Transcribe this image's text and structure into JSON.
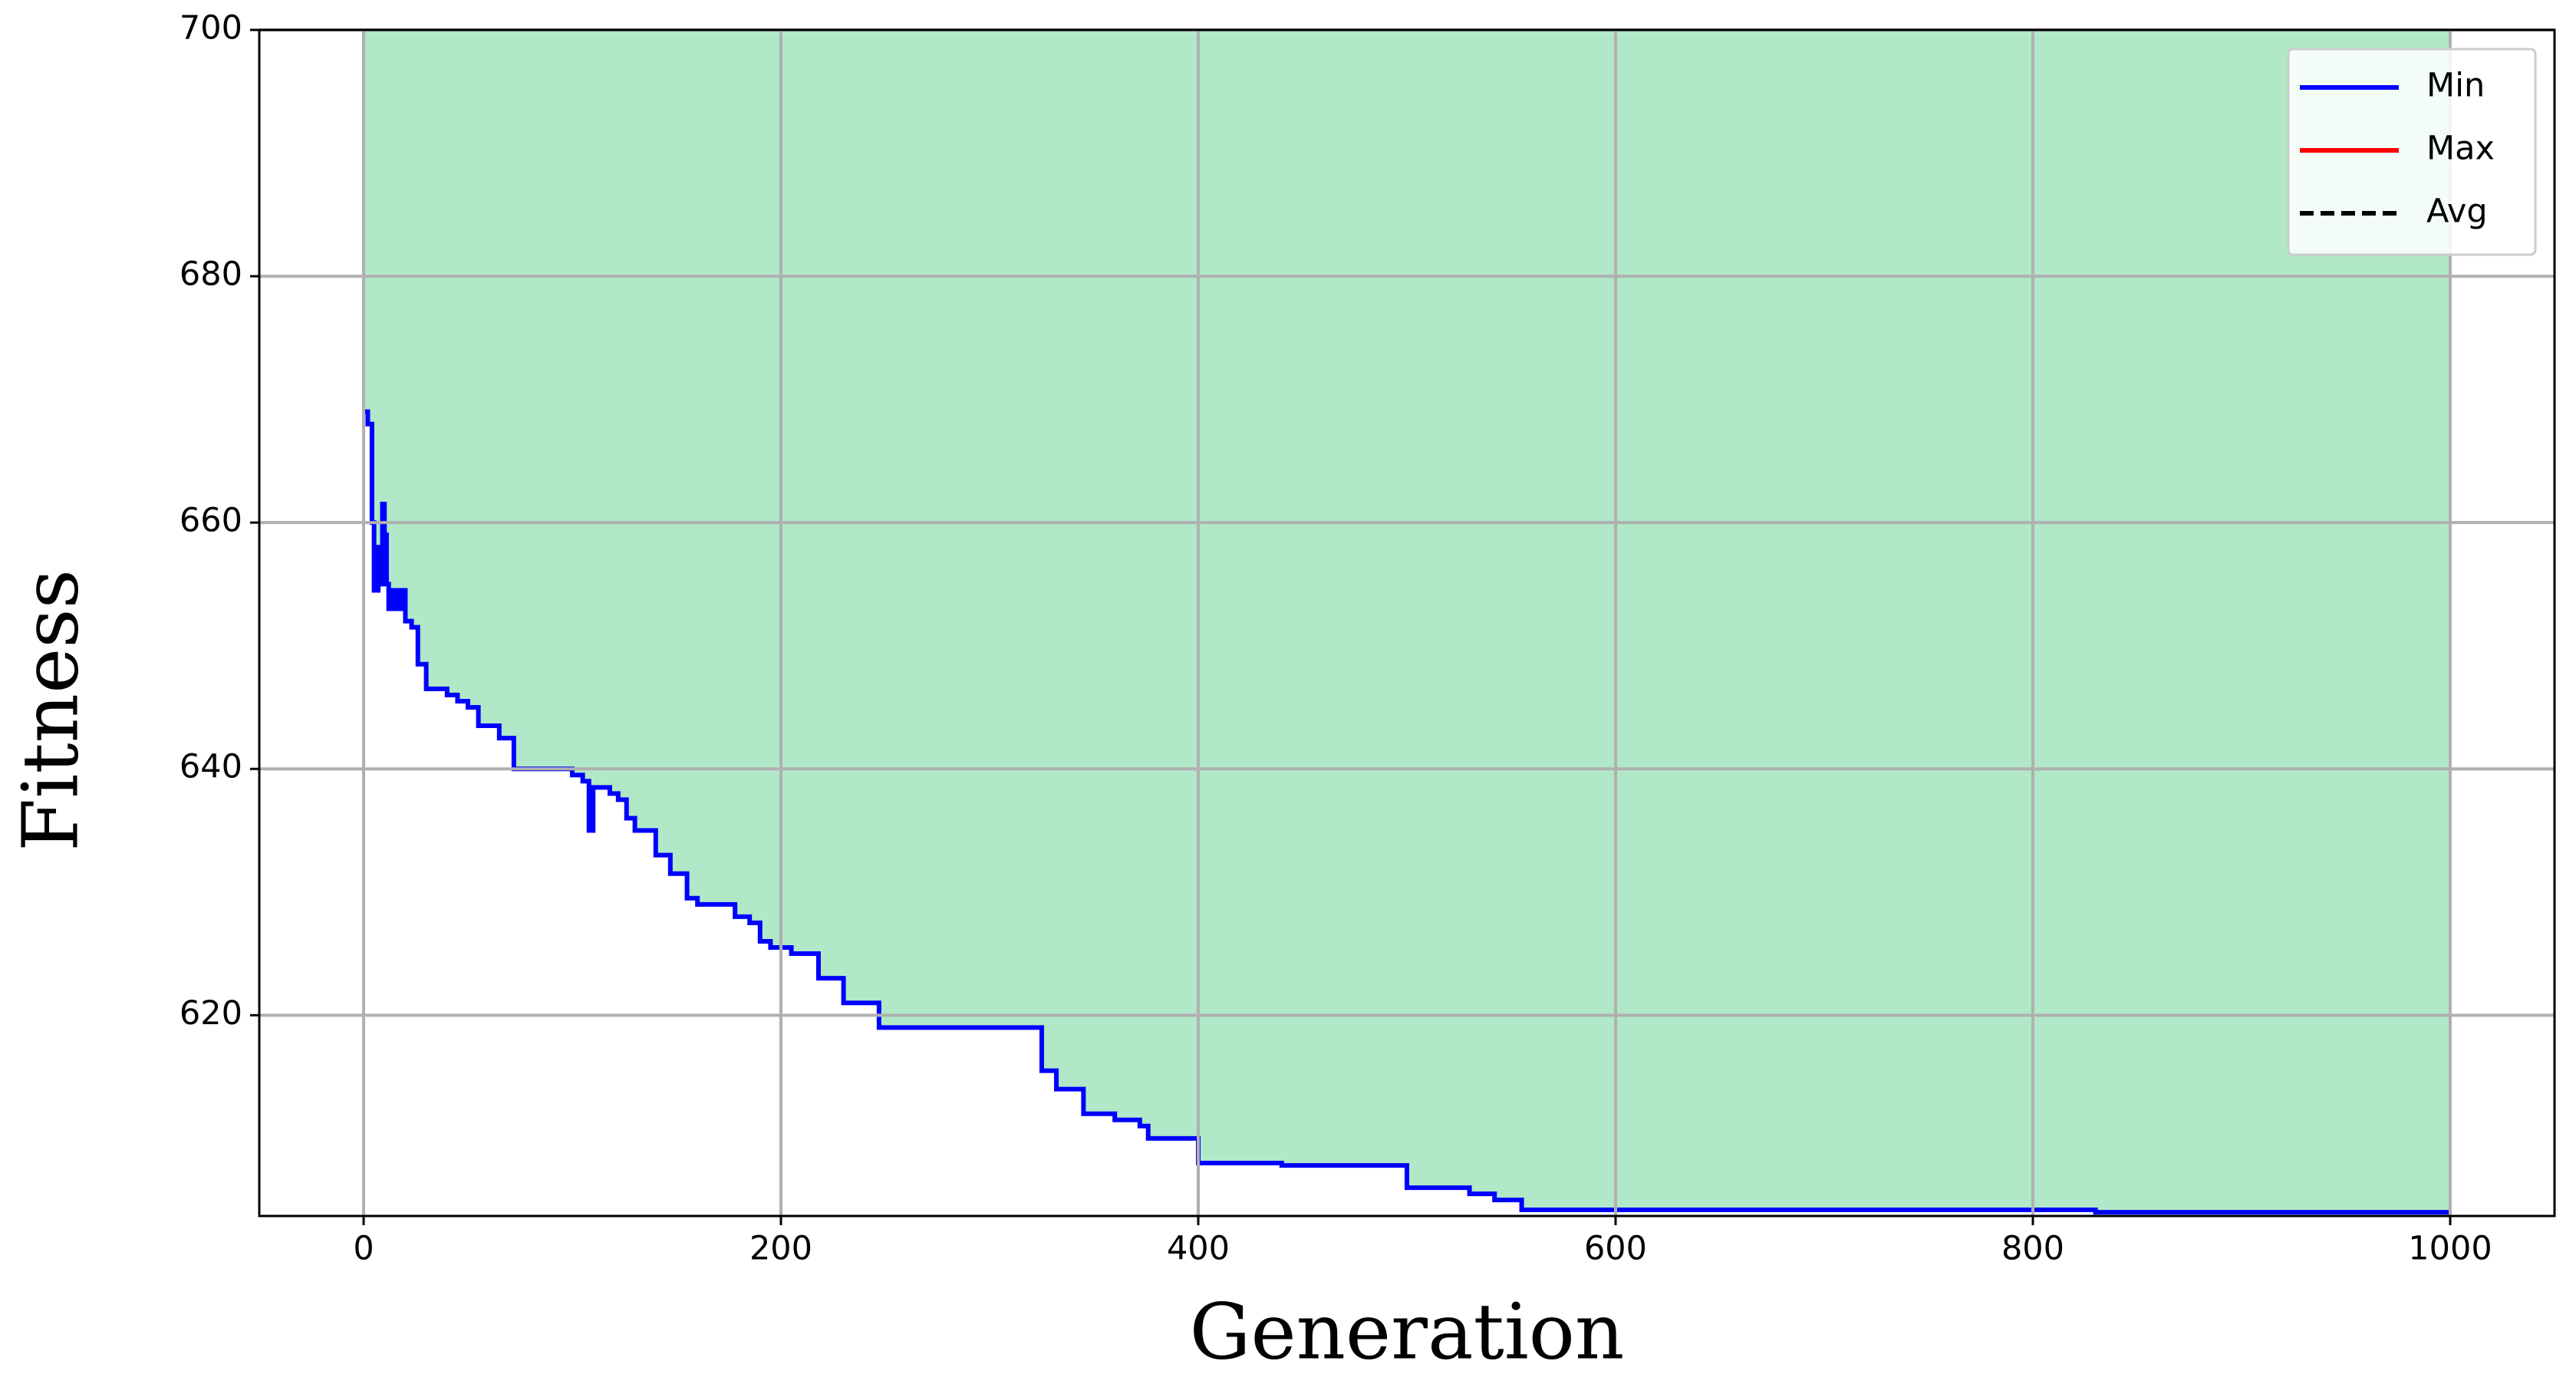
{
  "chart_data": {
    "type": "line",
    "step": true,
    "xlabel": "Generation",
    "ylabel": "Fitness",
    "x": [
      0,
      2,
      4,
      5,
      7,
      8,
      9,
      10,
      11,
      12,
      14,
      16,
      18,
      20,
      23,
      26,
      30,
      40,
      45,
      50,
      55,
      65,
      72,
      100,
      105,
      108,
      110,
      118,
      122,
      126,
      130,
      140,
      147,
      155,
      160,
      178,
      185,
      190,
      195,
      205,
      218,
      230,
      247,
      325,
      332,
      345,
      360,
      372,
      376,
      400,
      440,
      500,
      530,
      542,
      555,
      830,
      1000
    ],
    "series": [
      {
        "name": "Min",
        "color": "#0000ff",
        "values": [
          669,
          668,
          660,
          654.5,
          658,
          655,
          661.5,
          659,
          655,
          653,
          654.5,
          653,
          654.5,
          652,
          651.5,
          648.5,
          646.5,
          646,
          645.5,
          645,
          643.5,
          642.5,
          640,
          639.5,
          639,
          635,
          638.5,
          638,
          637.5,
          636,
          635,
          633,
          631.5,
          629.5,
          629,
          628,
          627.5,
          626,
          625.5,
          625,
          623,
          621,
          619,
          615.5,
          614,
          612,
          611.5,
          611,
          610,
          608,
          607.8,
          606,
          605.5,
          605,
          604.2,
          604,
          604
        ]
      },
      {
        "name": "Max",
        "color": "#ff0000",
        "values": [
          null,
          null,
          null,
          null,
          null,
          null,
          null,
          null,
          null,
          null,
          null,
          null,
          null,
          null,
          null,
          null,
          null,
          null,
          null,
          null,
          null,
          null,
          null,
          null,
          null,
          null,
          null,
          null,
          null,
          null,
          null,
          null,
          null,
          null,
          null,
          null,
          null,
          null,
          null,
          null,
          null,
          null,
          null,
          null,
          null,
          null,
          null,
          null,
          null,
          null,
          null,
          null,
          null,
          null,
          null,
          null,
          null
        ]
      },
      {
        "name": "Avg",
        "color": "#000000",
        "dashed": true,
        "values": [
          null,
          null,
          null,
          null,
          null,
          null,
          null,
          null,
          null,
          null,
          null,
          null,
          null,
          null,
          null,
          null,
          null,
          null,
          null,
          null,
          null,
          null,
          null,
          null,
          null,
          null,
          null,
          null,
          null,
          null,
          null,
          null,
          null,
          null,
          null,
          null,
          null,
          null,
          null,
          null,
          null,
          null,
          null,
          null,
          null,
          null,
          null,
          null,
          null,
          null,
          null,
          null,
          null,
          null,
          null,
          null,
          null
        ]
      }
    ],
    "fill_color": "#b0e8c8",
    "xlim": [
      -50,
      1050
    ],
    "ylim": [
      603.7,
      700
    ],
    "xticks": [
      0,
      200,
      400,
      600,
      800,
      1000
    ],
    "yticks": [
      620,
      640,
      660,
      680,
      700
    ],
    "grid": true,
    "legend": "upper right"
  }
}
